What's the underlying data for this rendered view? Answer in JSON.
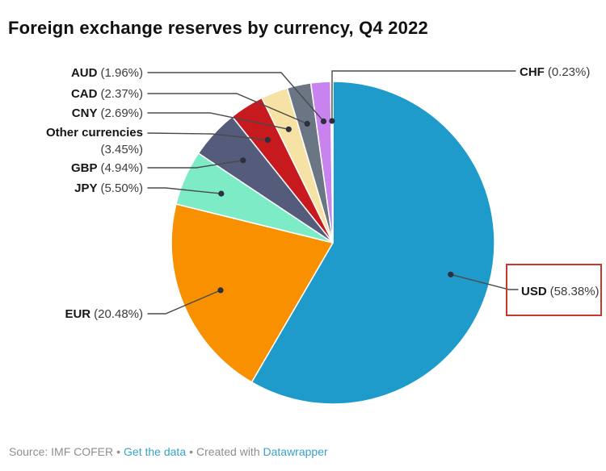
{
  "chart_data": {
    "type": "pie",
    "title": "Foreign exchange reserves by currency, Q4 2022",
    "unit": "percent",
    "direction": "clockwise",
    "start_angle_deg": 0,
    "legend_position": "callout-labels",
    "slices": [
      {
        "label": "USD",
        "value": 58.38,
        "color": "#1E9BCB",
        "highlighted": true
      },
      {
        "label": "EUR",
        "value": 20.48,
        "color": "#F89000",
        "highlighted": false
      },
      {
        "label": "JPY",
        "value": 5.5,
        "color": "#7DEBC5",
        "highlighted": false
      },
      {
        "label": "GBP",
        "value": 4.94,
        "color": "#555B7B",
        "highlighted": false
      },
      {
        "label": "Other currencies",
        "value": 3.45,
        "color": "#C61A1F",
        "highlighted": false
      },
      {
        "label": "CNY",
        "value": 2.69,
        "color": "#F6E2A5",
        "highlighted": false
      },
      {
        "label": "CAD",
        "value": 2.37,
        "color": "#6A7683",
        "highlighted": false
      },
      {
        "label": "AUD",
        "value": 1.96,
        "color": "#C983EE",
        "highlighted": false
      },
      {
        "label": "CHF",
        "value": 0.23,
        "color": "#EDEDED",
        "highlighted": false
      }
    ]
  },
  "annotations": {
    "highlight_box": {
      "target_label": "USD",
      "color": "#C13A2C"
    }
  },
  "footer": {
    "source": "Source: IMF COFER",
    "separator": "•",
    "get_data_label": "Get the data",
    "created_with": "Created with",
    "tool_label": "Datawrapper",
    "link_color": "#3AA2C6"
  }
}
